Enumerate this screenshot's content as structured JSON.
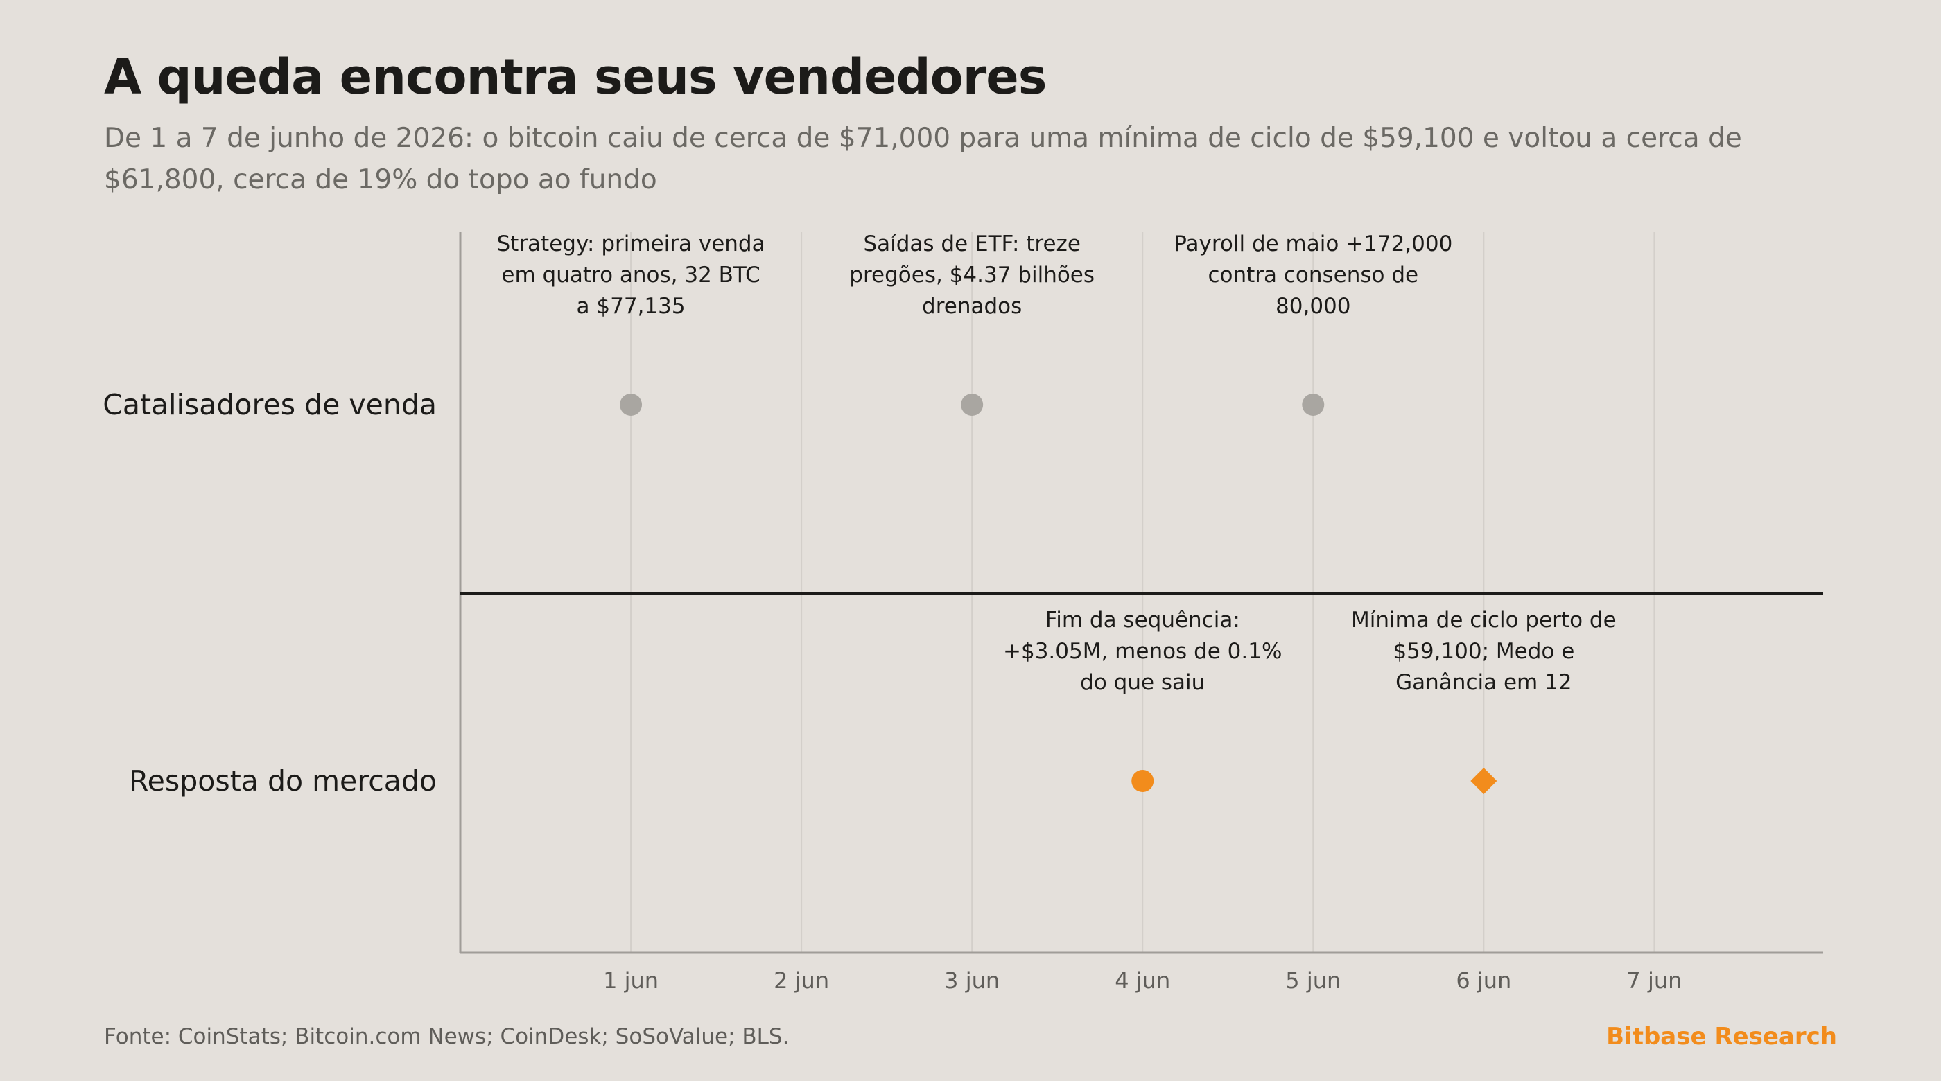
{
  "header": {
    "title": "A queda encontra seus vendedores",
    "subtitle": "De 1 a 7 de junho de 2026: o bitcoin caiu de cerca de $71,000 para uma mínima de ciclo de $59,100 e voltou a cerca de $61,800, cerca de 19% do topo ao fundo"
  },
  "footer": {
    "source": "Fonte: CoinStats; Bitcoin.com News; CoinDesk; SoSoValue; BLS.",
    "brand": "Bitbase Research"
  },
  "colors": {
    "background": "#e4e0db",
    "catalyst_marker": "#a9a6a1",
    "market_marker": "#f28c1c",
    "grid": "#d3cfca",
    "axis": "#a09d98",
    "divider": "#1c1b19",
    "brand": "#f28c1c"
  },
  "chart_data": {
    "type": "scatter",
    "x_ticks": [
      "1 jun",
      "2 jun",
      "3 jun",
      "4 jun",
      "5 jun",
      "6 jun",
      "7 jun"
    ],
    "xlim": [
      0,
      7.99
    ],
    "lanes": [
      "Catalisadores de venda",
      "Resposta do mercado"
    ],
    "grid": true,
    "events": [
      {
        "x": 1,
        "lane": 0,
        "marker": "circle",
        "label": [
          "Strategy: primeira venda",
          "em quatro anos, 32 BTC",
          "a $77,135"
        ]
      },
      {
        "x": 3,
        "lane": 0,
        "marker": "circle",
        "label": [
          "Saídas de ETF: treze",
          "pregões, $4.37 bilhões",
          "drenados"
        ]
      },
      {
        "x": 5,
        "lane": 0,
        "marker": "circle",
        "label": [
          "Payroll de maio +172,000",
          "contra consenso de",
          "80,000"
        ]
      },
      {
        "x": 4,
        "lane": 1,
        "marker": "circle",
        "label": [
          "Fim da sequência:",
          "+$3.05M, menos de 0.1%",
          "do que saiu"
        ]
      },
      {
        "x": 6,
        "lane": 1,
        "marker": "diamond",
        "label": [
          "Mínima de ciclo perto de",
          "$59,100; Medo e",
          "Ganância em 12"
        ]
      }
    ]
  }
}
